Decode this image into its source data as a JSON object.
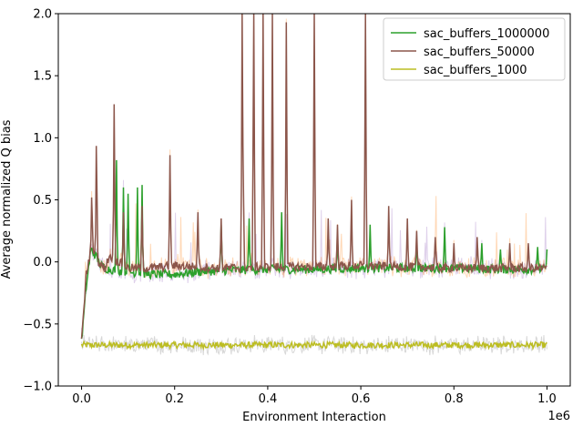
{
  "chart_data": {
    "type": "line",
    "title": "",
    "xlabel": "Environment Interaction",
    "ylabel": "Average normalized Q bias",
    "x_offset_label": "1e6",
    "xlim": [
      -0.05,
      1.05
    ],
    "ylim": [
      -1.0,
      2.0
    ],
    "x_ticks": [
      0.0,
      0.2,
      0.4,
      0.6,
      0.8,
      1.0
    ],
    "x_tick_labels": [
      "0.0",
      "0.2",
      "0.4",
      "0.6",
      "0.8",
      "1.0"
    ],
    "y_ticks": [
      -1.0,
      -0.5,
      0.0,
      0.5,
      1.0,
      1.5,
      2.0
    ],
    "y_tick_labels": [
      "−1.0",
      "−0.5",
      "0.0",
      "0.5",
      "1.0",
      "1.5",
      "2.0"
    ],
    "grid": false,
    "legend_position": "top-right",
    "series": [
      {
        "name": "sac_buffers_1000000",
        "color": "#2ca02c",
        "shade_color": "#9467bd",
        "x": [
          0.0,
          0.01,
          0.02,
          0.03,
          0.04,
          0.05,
          0.06,
          0.08,
          0.1,
          0.12,
          0.15,
          0.2,
          0.25,
          0.3,
          0.4,
          0.5,
          0.6,
          0.7,
          0.8,
          0.9,
          1.0
        ],
        "values": [
          -0.65,
          -0.2,
          0.1,
          0.05,
          -0.02,
          -0.05,
          -0.06,
          -0.07,
          -0.08,
          -0.09,
          -0.1,
          -0.1,
          -0.08,
          -0.07,
          -0.06,
          -0.06,
          -0.05,
          -0.05,
          -0.05,
          -0.06,
          -0.06
        ],
        "spikes": [
          [
            0.075,
            0.82
          ],
          [
            0.09,
            0.6
          ],
          [
            0.1,
            0.55
          ],
          [
            0.12,
            0.6
          ],
          [
            0.13,
            0.62
          ],
          [
            0.3,
            0.3
          ],
          [
            0.36,
            0.35
          ],
          [
            0.43,
            0.4
          ],
          [
            0.55,
            0.2
          ],
          [
            0.62,
            0.3
          ],
          [
            0.72,
            0.15
          ],
          [
            0.78,
            0.28
          ],
          [
            0.86,
            0.15
          ],
          [
            0.9,
            0.1
          ],
          [
            0.98,
            0.12
          ],
          [
            1.0,
            0.1
          ]
        ]
      },
      {
        "name": "sac_buffers_50000",
        "color": "#8c564b",
        "shade_color": "#ff7f0e",
        "x": [
          0.0,
          0.01,
          0.02,
          0.03,
          0.04,
          0.05,
          0.06,
          0.08,
          0.1,
          0.15,
          0.2,
          0.3,
          0.4,
          0.5,
          0.6,
          0.7,
          0.8,
          0.9,
          1.0
        ],
        "values": [
          -0.65,
          -0.1,
          0.1,
          0.05,
          -0.02,
          -0.05,
          0.05,
          0.0,
          -0.05,
          -0.05,
          -0.03,
          -0.05,
          -0.04,
          -0.04,
          -0.03,
          -0.04,
          -0.05,
          -0.05,
          -0.05
        ],
        "spikes": [
          [
            0.022,
            0.58
          ],
          [
            0.032,
            1.07
          ],
          [
            0.07,
            1.27
          ],
          [
            0.09,
            0.4
          ],
          [
            0.13,
            0.45
          ],
          [
            0.19,
            0.86
          ],
          [
            0.25,
            0.4
          ],
          [
            0.3,
            0.35
          ],
          [
            0.345,
            2.0
          ],
          [
            0.347,
            0.98
          ],
          [
            0.37,
            2.0
          ],
          [
            0.37,
            1.13
          ],
          [
            0.39,
            2.0
          ],
          [
            0.41,
            2.0
          ],
          [
            0.44,
            1.93
          ],
          [
            0.5,
            2.0
          ],
          [
            0.53,
            0.35
          ],
          [
            0.55,
            0.3
          ],
          [
            0.58,
            0.5
          ],
          [
            0.61,
            2.0
          ],
          [
            0.66,
            0.45
          ],
          [
            0.7,
            0.35
          ],
          [
            0.72,
            0.25
          ],
          [
            0.76,
            0.2
          ],
          [
            0.8,
            0.15
          ],
          [
            0.85,
            0.2
          ],
          [
            0.92,
            0.15
          ],
          [
            0.96,
            0.15
          ]
        ]
      },
      {
        "name": "sac_buffers_1000",
        "color": "#bcbd22",
        "shade_color": "#7f7f7f",
        "x": [
          0.0,
          0.1,
          0.2,
          0.3,
          0.4,
          0.5,
          0.6,
          0.7,
          0.8,
          0.9,
          1.0
        ],
        "values": [
          -0.67,
          -0.67,
          -0.67,
          -0.67,
          -0.67,
          -0.67,
          -0.67,
          -0.67,
          -0.67,
          -0.67,
          -0.67
        ],
        "spikes": []
      }
    ]
  }
}
